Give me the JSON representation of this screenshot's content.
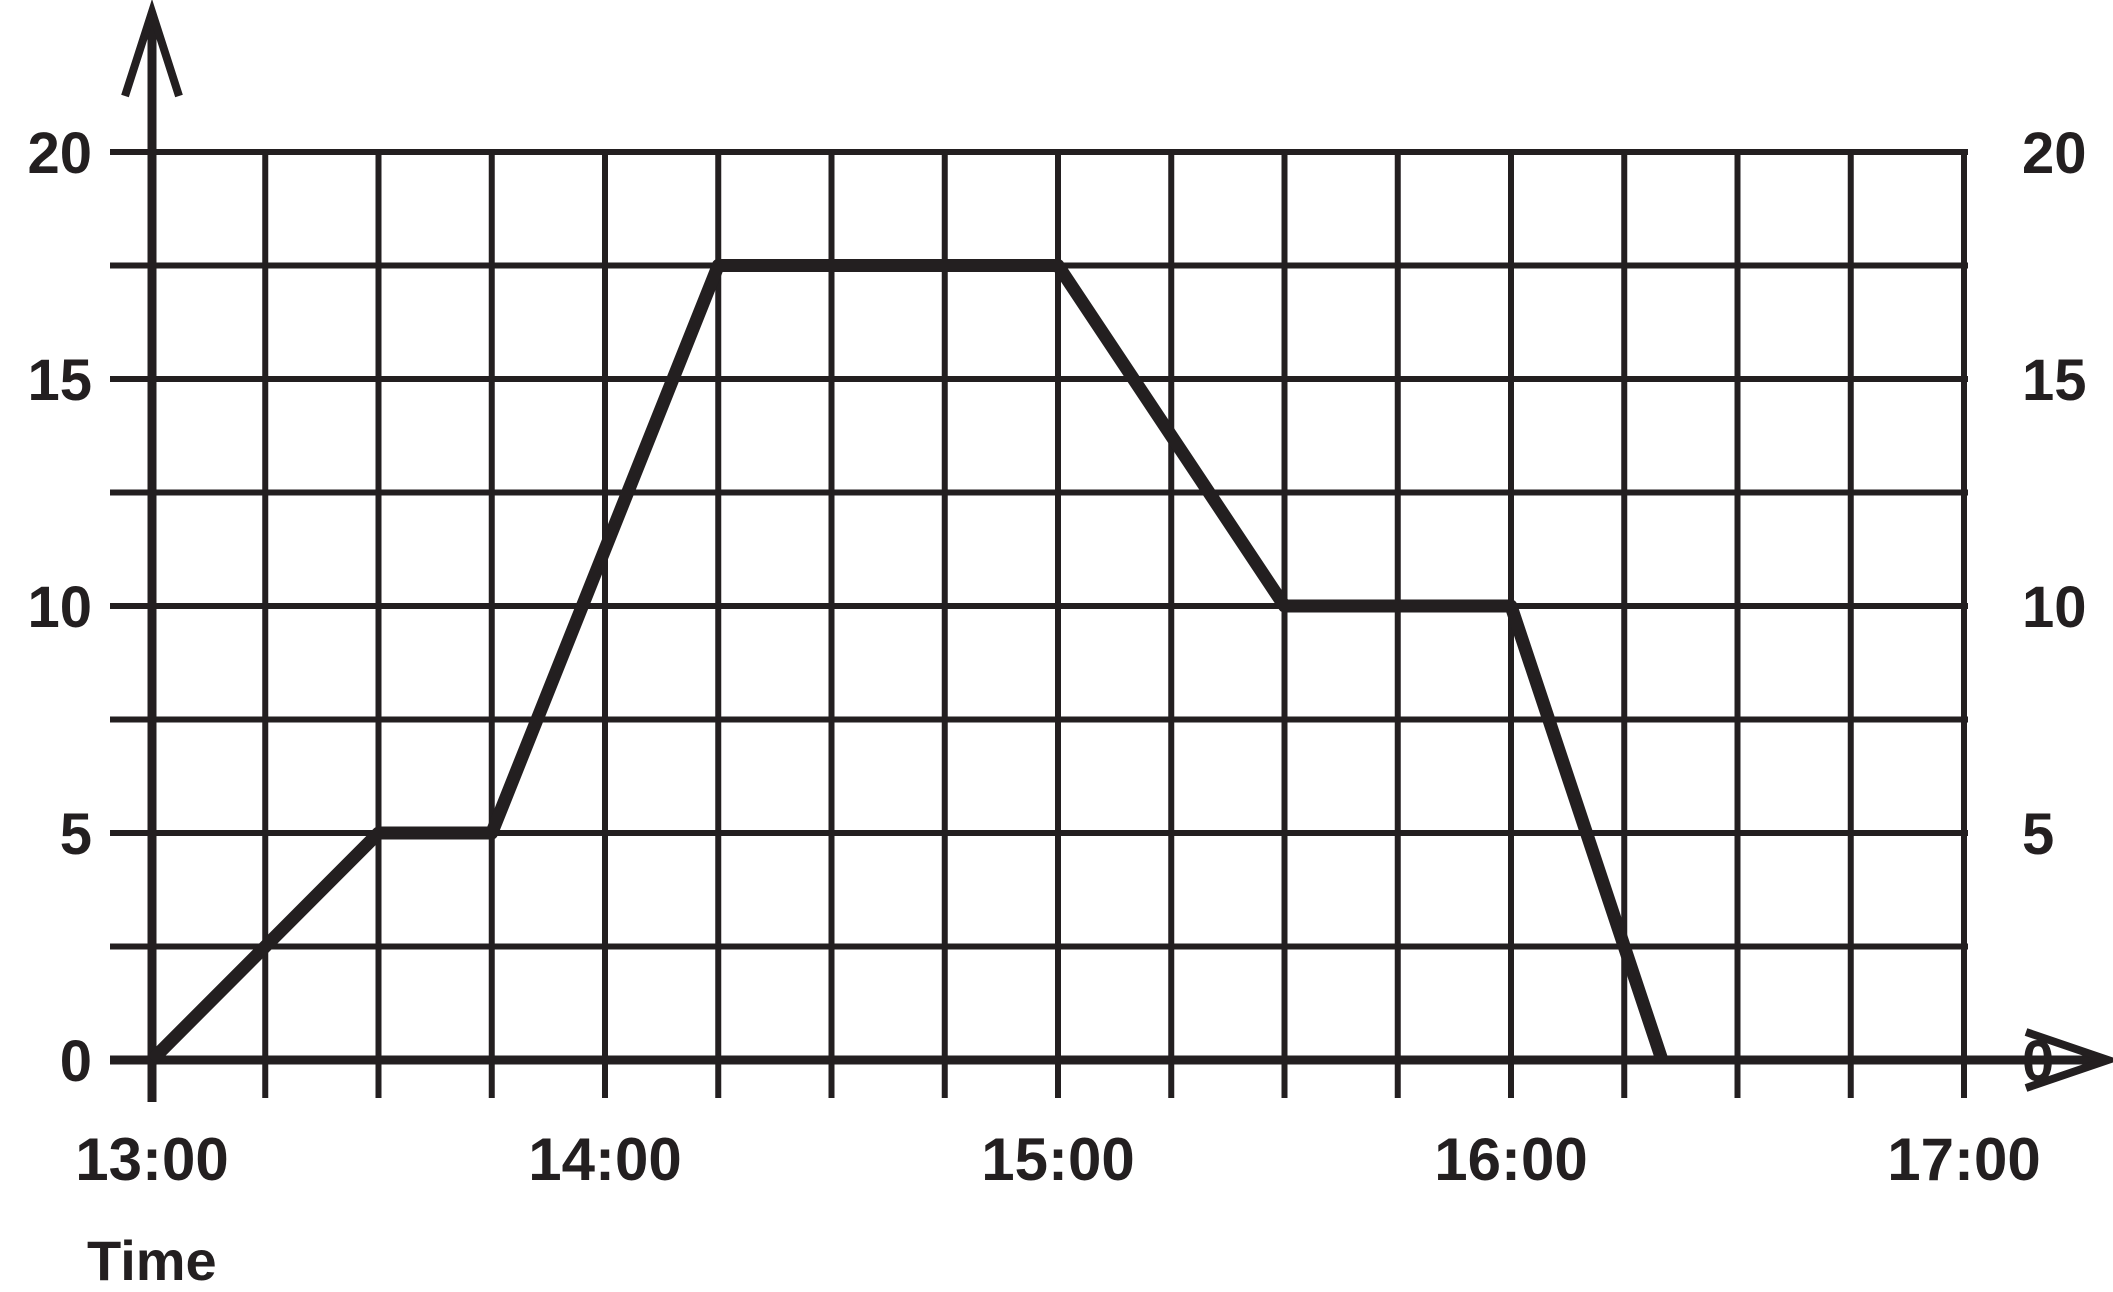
{
  "chart_data": {
    "type": "line",
    "xlabel": "Time",
    "ylabel": "",
    "x_tick_labels": [
      "13:00",
      "14:00",
      "15:00",
      "16:00",
      "17:00"
    ],
    "y_tick_labels": [
      "0",
      "5",
      "10",
      "15",
      "20"
    ],
    "xlim": [
      "13:00",
      "17:00"
    ],
    "ylim": [
      0,
      20
    ],
    "grid": true,
    "y_axis_labels_both_sides": true,
    "series": [
      {
        "x": [
          "13:00",
          "13:30",
          "13:45",
          "14:15",
          "15:00",
          "15:30",
          "16:00",
          "16:20"
        ],
        "y": [
          0,
          5,
          5,
          17.5,
          17.5,
          10,
          10,
          0
        ]
      }
    ]
  },
  "colors": {
    "ink": "#231f20",
    "background": "#ffffff"
  }
}
